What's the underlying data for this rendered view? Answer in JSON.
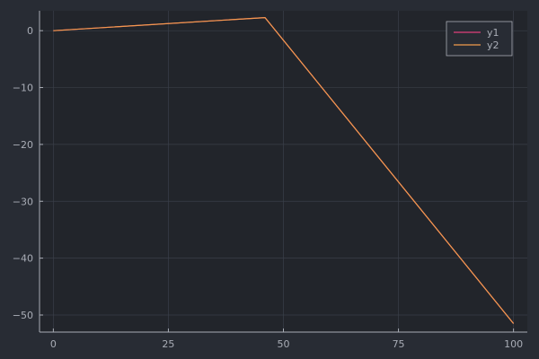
{
  "chart_data": {
    "type": "line",
    "title": "",
    "xlabel": "",
    "ylabel": "",
    "xlim": [
      -3,
      103
    ],
    "ylim": [
      -53,
      3.5
    ],
    "xticks": [
      0,
      25,
      50,
      75,
      100
    ],
    "xtick_labels": [
      "0",
      "25",
      "50",
      "75",
      "100"
    ],
    "yticks": [
      0,
      -10,
      -20,
      -30,
      -40,
      -50
    ],
    "ytick_labels": [
      "0",
      "−10",
      "−20",
      "−30",
      "−40",
      "−50"
    ],
    "grid": true,
    "legend": "top-right",
    "series": [
      {
        "name": "y1",
        "color": "#e0407a",
        "x": [
          0,
          46,
          100
        ],
        "y": [
          0,
          2.3,
          -51.5
        ]
      },
      {
        "name": "y2",
        "color": "#f29b4c",
        "x": [
          0,
          46,
          100
        ],
        "y": [
          0,
          2.3,
          -51.5
        ]
      }
    ],
    "colors": {
      "background": "#282c34",
      "plot_background": "#22252b",
      "axis": "#a9adb6",
      "grid": "#3a3f49",
      "legend_background": "#282c34",
      "legend_border": "#a9adb6"
    }
  }
}
